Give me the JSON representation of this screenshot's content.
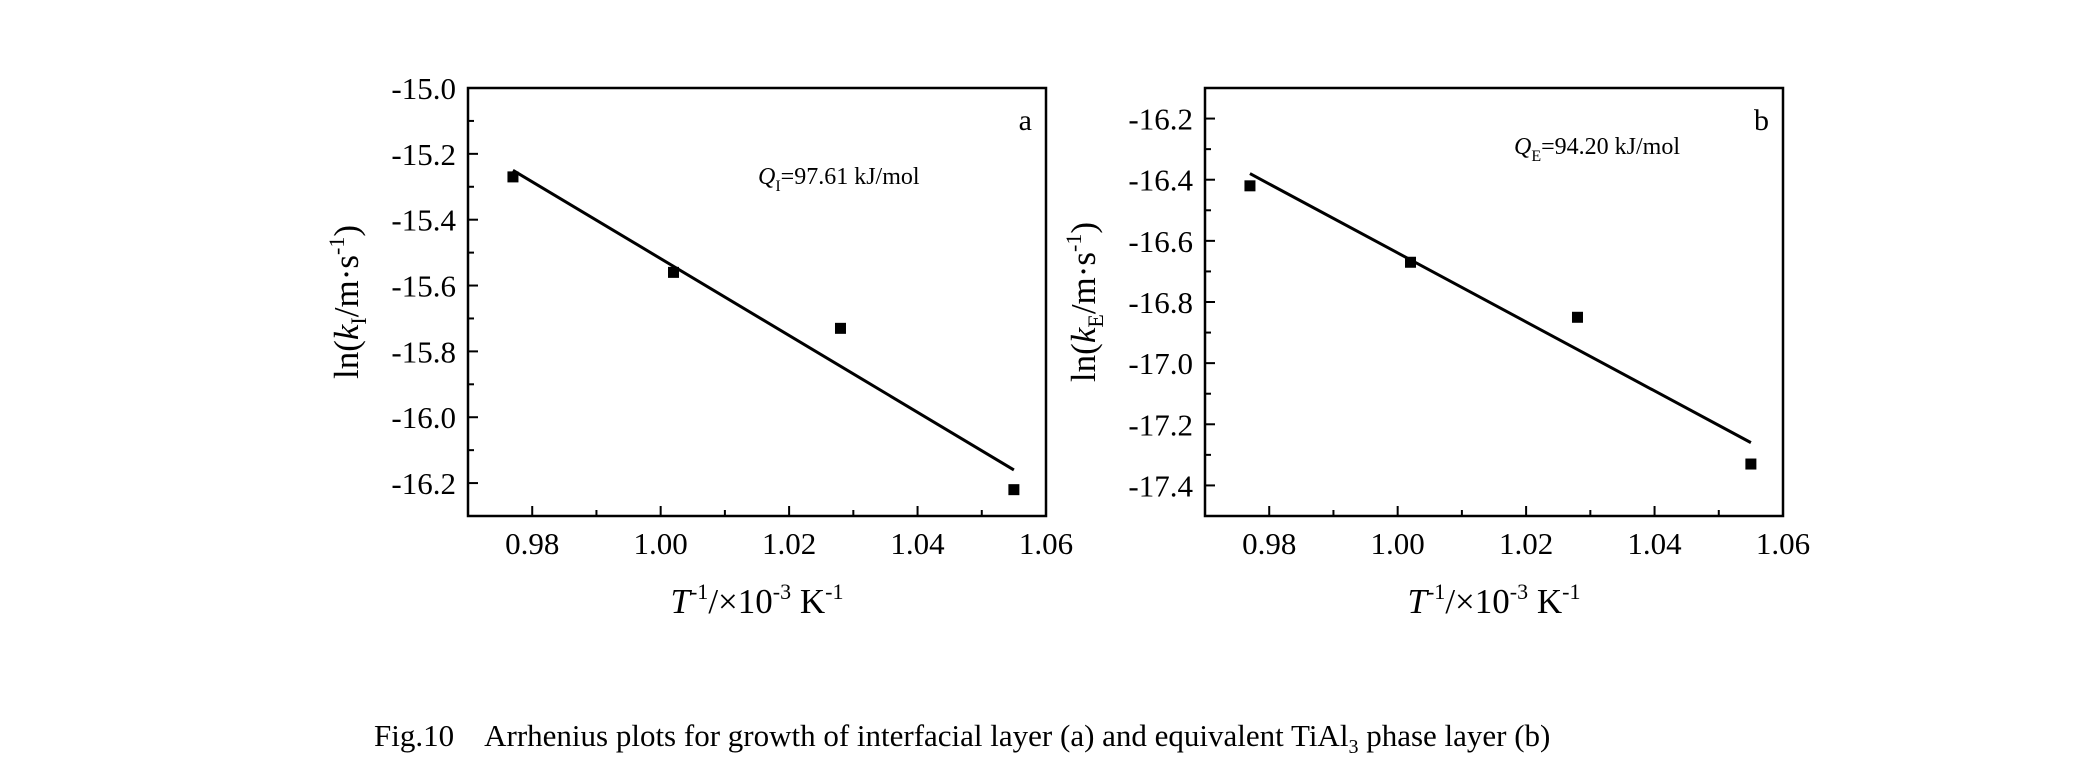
{
  "chart_data": [
    {
      "type": "scatter",
      "panel_label": "a",
      "annotation": {
        "symbol": "Q",
        "subscript": "I",
        "text": "=97.61 kJ/mol"
      },
      "xlabel": {
        "symbol": "T",
        "sup": "-1",
        "mid": "/×10",
        "sup2": "-3",
        "unit": " K",
        "sup3": "-1"
      },
      "ylabel": {
        "prefix": "ln(",
        "symbol": "k",
        "subscript": "I",
        "unit": "/m·s",
        "sup": "-1",
        "suffix": ")"
      },
      "xlim": [
        0.97,
        1.06
      ],
      "ylim": [
        -16.3,
        -15.0
      ],
      "xticks": [
        0.98,
        1.0,
        1.02,
        1.04,
        1.06
      ],
      "yticks": [
        -15.0,
        -15.2,
        -15.4,
        -15.6,
        -15.8,
        -16.0,
        -16.2
      ],
      "xtick_labels": [
        "0.98",
        "1.00",
        "1.02",
        "1.04",
        "1.06"
      ],
      "ytick_labels": [
        "-15.0",
        "-15.2",
        "-15.4",
        "-15.6",
        "-15.8",
        "-16.0",
        "-16.2"
      ],
      "points": [
        {
          "x": 0.977,
          "y": -15.27
        },
        {
          "x": 1.002,
          "y": -15.56
        },
        {
          "x": 1.028,
          "y": -15.73
        },
        {
          "x": 1.055,
          "y": -16.22
        }
      ],
      "fit_line": [
        {
          "x": 0.977,
          "y": -15.25
        },
        {
          "x": 1.055,
          "y": -16.16
        }
      ]
    },
    {
      "type": "scatter",
      "panel_label": "b",
      "annotation": {
        "symbol": "Q",
        "subscript": "E",
        "text": "=94.20 kJ/mol"
      },
      "xlabel": {
        "symbol": "T",
        "sup": "-1",
        "mid": "/×10",
        "sup2": "-3",
        "unit": " K",
        "sup3": "-1"
      },
      "ylabel": {
        "prefix": "ln(",
        "symbol": "k",
        "subscript": "E",
        "unit": "/m·s",
        "sup": "-1",
        "suffix": ")"
      },
      "xlim": [
        0.97,
        1.06
      ],
      "ylim": [
        -17.5,
        -16.1
      ],
      "xticks": [
        0.98,
        1.0,
        1.02,
        1.04,
        1.06
      ],
      "yticks": [
        -16.2,
        -16.4,
        -16.6,
        -16.8,
        -17.0,
        -17.2,
        -17.4
      ],
      "xtick_labels": [
        "0.98",
        "1.00",
        "1.02",
        "1.04",
        "1.06"
      ],
      "ytick_labels": [
        "-16.2",
        "-16.4",
        "-16.6",
        "-16.8",
        "-17.0",
        "-17.2",
        "-17.4"
      ],
      "points": [
        {
          "x": 0.977,
          "y": -16.42
        },
        {
          "x": 1.002,
          "y": -16.67
        },
        {
          "x": 1.028,
          "y": -16.85
        },
        {
          "x": 1.055,
          "y": -17.33
        }
      ],
      "fit_line": [
        {
          "x": 0.977,
          "y": -16.38
        },
        {
          "x": 1.055,
          "y": -17.26
        }
      ]
    }
  ],
  "caption": {
    "label": "Fig.10",
    "text_before": "Arrhenius plots for growth of interfacial layer (a) and equivalent TiAl",
    "sub": "3",
    "text_after": " phase layer (b)"
  }
}
